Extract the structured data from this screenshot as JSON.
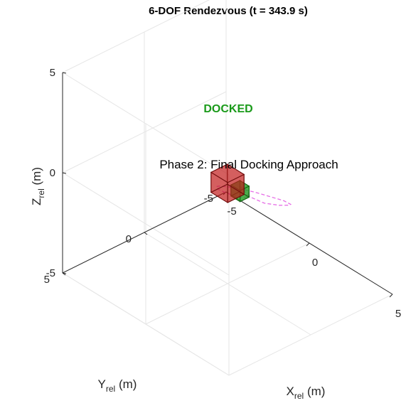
{
  "chart_data": {
    "type": "3d-scene",
    "title": "6-DOF Rendezvous (t = 343.9 s)",
    "status_text": "DOCKED",
    "phase_text": "Phase 2: Final Docking Approach",
    "xlabel": {
      "main": "X",
      "sub": "rel",
      "unit": " (m)"
    },
    "ylabel": {
      "main": "Y",
      "sub": "rel",
      "unit": " (m)"
    },
    "zlabel": {
      "main": "Z",
      "sub": "rel",
      "unit": " (m)"
    },
    "xlim": [
      -5,
      5
    ],
    "ylim": [
      -5,
      5
    ],
    "zlim": [
      -5,
      5
    ],
    "x_ticks": [
      "-5",
      "0",
      "5"
    ],
    "y_ticks": [
      "-5",
      "0",
      "5"
    ],
    "z_ticks": [
      "-5",
      "0",
      "5"
    ],
    "grid": true,
    "colors": {
      "status": "#1a9a1a",
      "target_body": "#c11b1b",
      "chaser_body": "#1f9a1f",
      "trajectory": "#e66ee6"
    },
    "objects": [
      {
        "name": "target",
        "center": [
          0,
          0,
          0
        ],
        "size": 1.0
      },
      {
        "name": "chaser",
        "center": [
          0.75,
          0,
          0
        ],
        "size": 0.55
      }
    ],
    "trajectory": [
      [
        0.9,
        0.2,
        0.4
      ],
      [
        1.7,
        0.8,
        0.9
      ],
      [
        2.5,
        1.2,
        1.1
      ],
      [
        3.2,
        1.0,
        1.05
      ],
      [
        3.6,
        0.5,
        0.95
      ],
      [
        3.7,
        0.0,
        0.8
      ],
      [
        3.5,
        -0.3,
        0.62
      ],
      [
        3.0,
        -0.4,
        0.5
      ],
      [
        2.3,
        -0.2,
        0.45
      ],
      [
        1.7,
        0.1,
        0.48
      ],
      [
        1.2,
        0.5,
        0.55
      ],
      [
        0.9,
        0.9,
        0.65
      ],
      [
        0.8,
        1.3,
        0.8
      ],
      [
        0.9,
        1.6,
        0.95
      ],
      [
        1.2,
        1.8,
        1.05
      ],
      [
        1.6,
        1.8,
        1.1
      ],
      [
        2.0,
        1.6,
        1.05
      ],
      [
        2.2,
        1.2,
        0.9
      ],
      [
        2.0,
        0.7,
        0.7
      ],
      [
        1.5,
        0.3,
        0.5
      ],
      [
        1.0,
        0.1,
        0.35
      ],
      [
        0.75,
        0.0,
        0.2
      ]
    ]
  }
}
